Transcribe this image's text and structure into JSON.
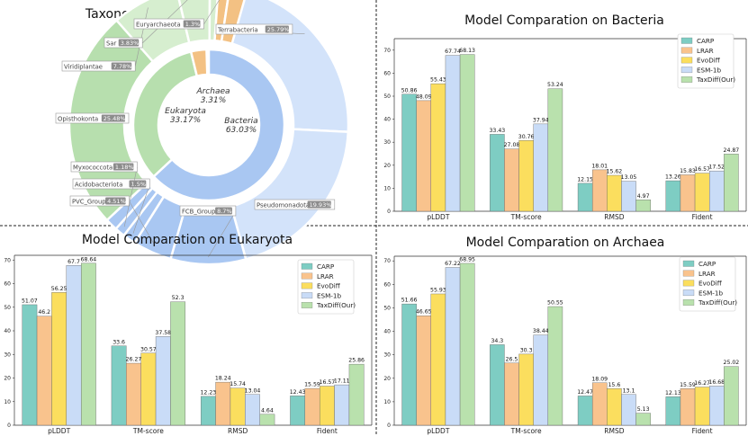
{
  "colors": {
    "carp": "#7ecdc3",
    "lrar": "#f9c38d",
    "evodiff": "#fbde5e",
    "esm": "#c9dcf7",
    "taxdiff": "#b9e1ad",
    "bacteria_dark": "#a9c7f2",
    "bacteria_light": "#d3e3fa",
    "eukaryota": "#b7dfae",
    "euk_light": "#d6eecf",
    "archaea": "#f3c183",
    "pct_badge": "#8c8c8c"
  },
  "chart_data": [
    {
      "type": "pie",
      "title": "Taxonomic distribution of protein",
      "inner": [
        {
          "name": "Bacteria",
          "value": "63.03%",
          "pct": 63.03
        },
        {
          "name": "Eukaryota",
          "value": "33.17%",
          "pct": 33.17
        },
        {
          "name": "Archaea",
          "value": "3.31%",
          "pct": 3.31
        }
      ],
      "outer": [
        {
          "name": "Terrabacteria",
          "pct_label": "25.79%",
          "pct": 25.79,
          "group": "bacteria"
        },
        {
          "name": "Pseudomonadota",
          "pct_label": "19.93%",
          "pct": 19.93,
          "group": "bacteria"
        },
        {
          "name": "FCB_Group",
          "pct_label": "8.7%",
          "pct": 8.7,
          "group": "bacteria"
        },
        {
          "name": "PVC_Group",
          "pct_label": "4.51%",
          "pct": 4.51,
          "group": "bacteria"
        },
        {
          "name": "Acidobacteriota",
          "pct_label": "1.5%",
          "pct": 1.5,
          "group": "bacteria"
        },
        {
          "name": "Myxococcota",
          "pct_label": "1.18%",
          "pct": 1.18,
          "group": "bacteria"
        },
        {
          "name": "",
          "pct_label": "",
          "pct": 1.42,
          "group": "bacteria"
        },
        {
          "name": "Opisthokonta",
          "pct_label": "25.48%",
          "pct": 25.48,
          "group": "eukaryota"
        },
        {
          "name": "Viridiplantae",
          "pct_label": "7.78%",
          "pct": 7.78,
          "group": "eukaryota"
        },
        {
          "name": "Sar",
          "pct_label": "3.83%",
          "pct": 3.83,
          "group": "eukaryota"
        },
        {
          "name": "",
          "pct_label": "",
          "pct": 0.98,
          "group": "eukaryota"
        },
        {
          "name": "Euryarchaeota",
          "pct_label": "1.3%",
          "pct": 1.3,
          "group": "archaea"
        },
        {
          "name": "",
          "pct_label": "",
          "pct": 2.01,
          "group": "archaea"
        }
      ]
    },
    {
      "type": "bar",
      "title": "Model Comparation on Bacteria",
      "categories": [
        "pLDDT",
        "TM-score",
        "RMSD",
        "Fident"
      ],
      "ylim": [
        0,
        75
      ],
      "yticks": [
        0,
        10,
        20,
        30,
        40,
        50,
        60,
        70
      ],
      "series": [
        {
          "name": "CARP",
          "values": [
            50.86,
            33.43,
            12.15,
            13.26
          ]
        },
        {
          "name": "LRAR",
          "values": [
            48.09,
            27.08,
            18.01,
            15.83
          ]
        },
        {
          "name": "EvoDiff",
          "values": [
            55.43,
            30.76,
            15.62,
            16.57
          ]
        },
        {
          "name": "ESM-1b",
          "values": [
            67.74,
            37.94,
            13.05,
            17.52
          ]
        },
        {
          "name": "TaxDiff(Our)",
          "values": [
            68.13,
            53.24,
            4.97,
            24.87
          ]
        }
      ]
    },
    {
      "type": "bar",
      "title": "Model Comparation on Eukaryota",
      "categories": [
        "pLDDT",
        "TM-score",
        "RMSD",
        "Fident"
      ],
      "ylim": [
        0,
        72
      ],
      "yticks": [
        0,
        10,
        20,
        30,
        40,
        50,
        60,
        70
      ],
      "series": [
        {
          "name": "CARP",
          "values": [
            51.07,
            33.6,
            12.23,
            12.43
          ]
        },
        {
          "name": "LRAR",
          "values": [
            46.2,
            26.27,
            18.24,
            15.59
          ]
        },
        {
          "name": "EvoDiff",
          "values": [
            56.25,
            30.57,
            15.74,
            16.57
          ]
        },
        {
          "name": "ESM-1b",
          "values": [
            67.7,
            37.58,
            13.04,
            17.11
          ]
        },
        {
          "name": "TaxDiff(Our)",
          "values": [
            68.64,
            52.3,
            4.64,
            25.86
          ]
        }
      ]
    },
    {
      "type": "bar",
      "title": "Model Comparation on Archaea",
      "categories": [
        "pLDDT",
        "TM-score",
        "RMSD",
        "Fident"
      ],
      "ylim": [
        0,
        72
      ],
      "yticks": [
        0,
        10,
        20,
        30,
        40,
        50,
        60,
        70
      ],
      "series": [
        {
          "name": "CARP",
          "values": [
            51.66,
            34.3,
            12.47,
            12.13
          ]
        },
        {
          "name": "LRAR",
          "values": [
            46.65,
            26.5,
            18.09,
            15.59
          ]
        },
        {
          "name": "EvoDiff",
          "values": [
            55.93,
            30.3,
            15.6,
            16.27
          ]
        },
        {
          "name": "ESM-1b",
          "values": [
            67.22,
            38.44,
            13.1,
            16.68
          ]
        },
        {
          "name": "TaxDiff(Our)",
          "values": [
            68.95,
            50.55,
            5.13,
            25.02
          ]
        }
      ]
    }
  ]
}
